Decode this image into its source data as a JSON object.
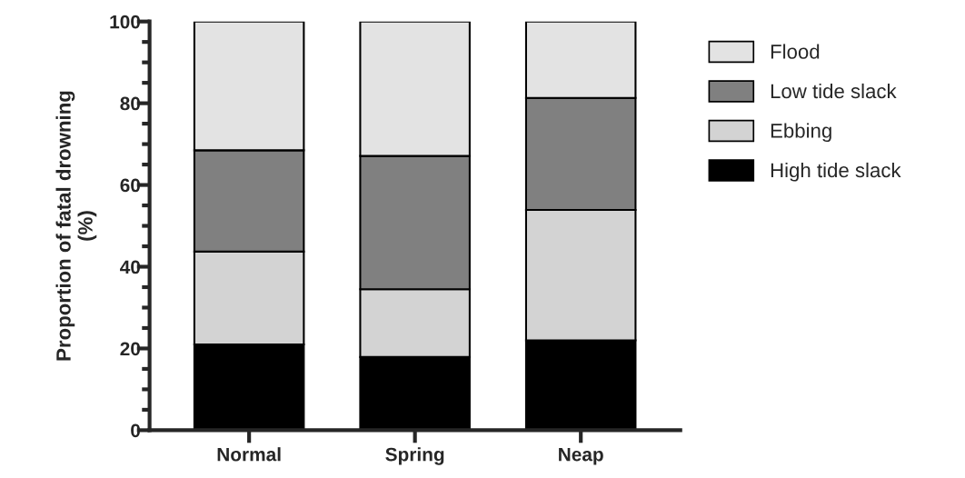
{
  "chart_data": {
    "type": "bar",
    "stacked": true,
    "ylabel": "Proportion of fatal drowning\n(%)",
    "categories": [
      "Normal",
      "Spring",
      "Neap"
    ],
    "series": [
      {
        "name": "High tide slack",
        "color": "#000000",
        "values": [
          21.0,
          17.9,
          22.0
        ]
      },
      {
        "name": "Ebbing",
        "color": "#d3d3d3",
        "values": [
          22.7,
          16.6,
          31.9
        ]
      },
      {
        "name": "Low tide slack",
        "color": "#808080",
        "values": [
          24.8,
          32.6,
          27.4
        ]
      },
      {
        "name": "Flood",
        "color": "#e3e3e3",
        "values": [
          31.5,
          32.9,
          18.7
        ]
      }
    ],
    "ylim": [
      0,
      100
    ],
    "yticks": [
      0,
      {
        "value": 5,
        "label": null
      },
      {
        "value": 10,
        "label": null
      },
      {
        "value": 15,
        "label": null
      },
      20,
      {
        "value": 25,
        "label": null
      },
      {
        "value": 30,
        "label": null
      },
      {
        "value": 35,
        "label": null
      },
      40,
      {
        "value": 45,
        "label": null
      },
      {
        "value": 50,
        "label": null
      },
      {
        "value": 55,
        "label": null
      },
      60,
      {
        "value": 65,
        "label": null
      },
      {
        "value": 70,
        "label": null
      },
      {
        "value": 75,
        "label": null
      },
      80,
      {
        "value": 85,
        "label": null
      },
      {
        "value": 90,
        "label": null
      },
      {
        "value": 95,
        "label": null
      },
      100
    ],
    "grid": false,
    "legend": "right"
  }
}
